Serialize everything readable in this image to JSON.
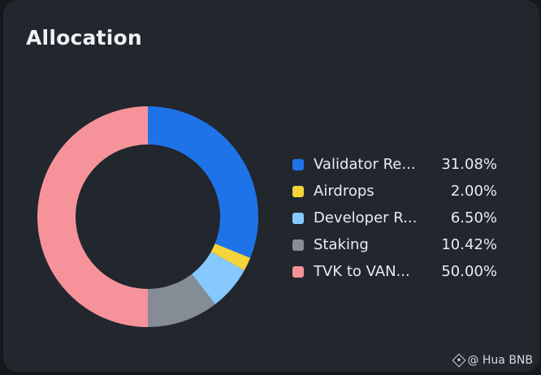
{
  "chart_data": {
    "type": "pie",
    "title": "Allocation",
    "legend_position": "right",
    "donut": true,
    "slices": [
      {
        "label": "Validator Re...",
        "value": 31.08,
        "value_label": "31.08%",
        "color": "#1f73e8"
      },
      {
        "label": "Airdrops",
        "value": 2.0,
        "value_label": "2.00%",
        "color": "#f4d43a"
      },
      {
        "label": "Developer R...",
        "value": 6.5,
        "value_label": "6.50%",
        "color": "#85c9ff"
      },
      {
        "label": "Staking",
        "value": 10.42,
        "value_label": "10.42%",
        "color": "#868c95"
      },
      {
        "label": "TVK to VAN...",
        "value": 50.0,
        "value_label": "50.00%",
        "color": "#f6939a"
      }
    ]
  },
  "watermark": {
    "text": "@ Hua BNB",
    "icon": "bnb-icon"
  }
}
